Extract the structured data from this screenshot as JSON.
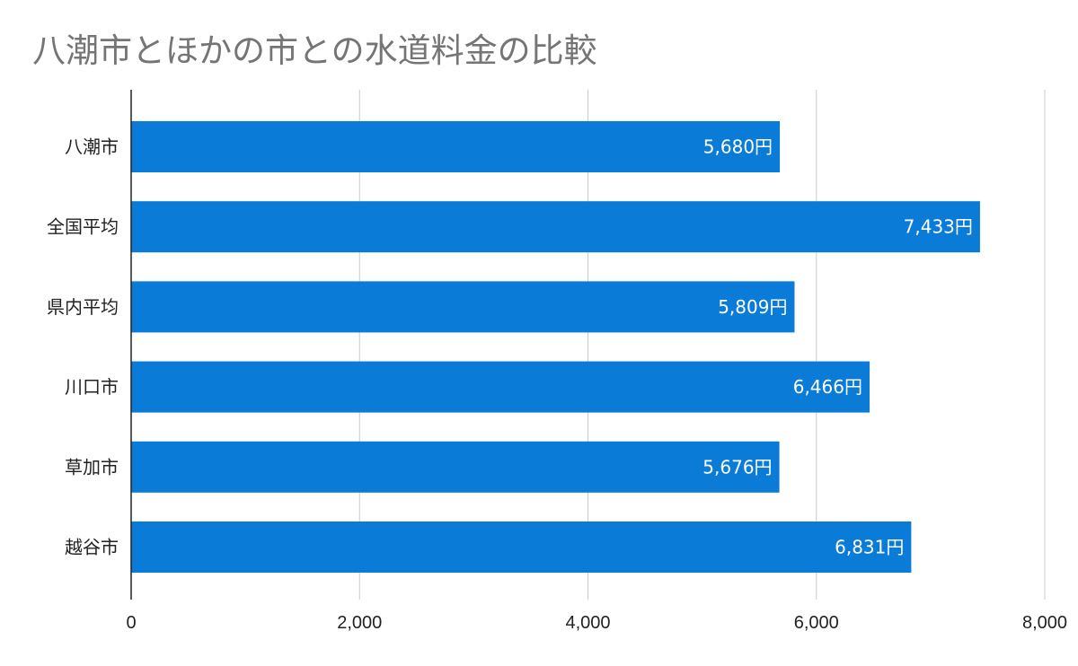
{
  "chart_data": {
    "type": "bar",
    "orientation": "horizontal",
    "title": "八潮市とほかの市との水道料金の比較",
    "categories": [
      "八潮市",
      "全国平均",
      "県内平均",
      "川口市",
      "草加市",
      "越谷市"
    ],
    "values": [
      5680,
      7433,
      5809,
      6466,
      5676,
      6831
    ],
    "data_labels": [
      "5,680円",
      "7,433円",
      "5,809円",
      "6,466円",
      "5,676円",
      "6,831円"
    ],
    "xlim": [
      0,
      8000
    ],
    "xticks": [
      0,
      2000,
      4000,
      6000,
      8000
    ],
    "xtick_labels": [
      "0",
      "2,000",
      "4,000",
      "6,000",
      "8,000"
    ],
    "grid": true,
    "legend": "none",
    "colors": {
      "bar": "#0a7bd6",
      "grid": "#cccccc",
      "axis": "#222222",
      "title": "#757575"
    }
  }
}
